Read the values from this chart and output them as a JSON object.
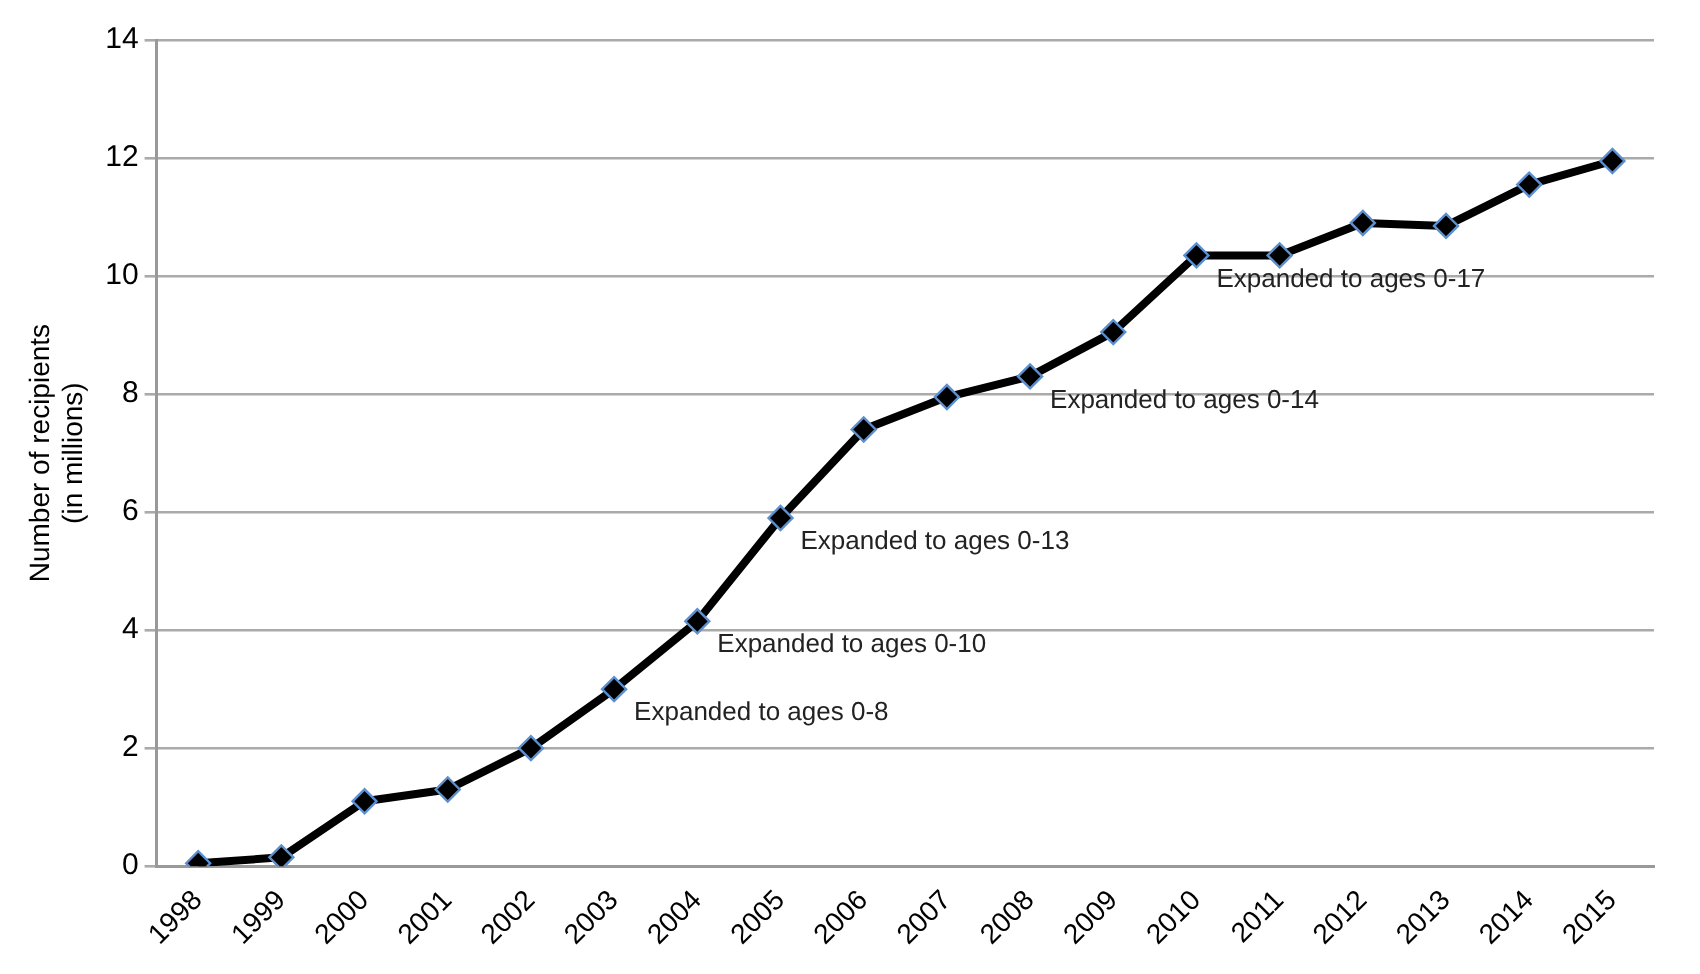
{
  "chart_data": {
    "type": "line",
    "ylabel": "Number of recipients\n(in millions)",
    "categories": [
      "1998",
      "1999",
      "2000",
      "2001",
      "2002",
      "2003",
      "2004",
      "2005",
      "2006",
      "2007",
      "2008",
      "2009",
      "2010",
      "2011",
      "2012",
      "2013",
      "2014",
      "2015"
    ],
    "series": [
      {
        "color": "#000000",
        "values": [
          0.05,
          0.15,
          1.1,
          1.3,
          2.0,
          3.0,
          4.15,
          5.9,
          7.4,
          7.95,
          8.3,
          9.05,
          10.35,
          10.35,
          10.9,
          10.85,
          11.55,
          11.95
        ]
      }
    ],
    "ylim": [
      0,
      14
    ],
    "yticks": [
      0,
      2,
      4,
      6,
      8,
      10,
      12,
      14
    ],
    "grid": "y",
    "legend": false,
    "marker": "diamond",
    "line_style": "solid",
    "annotations": [
      {
        "text": "Expanded to ages 0-8",
        "x": "2003",
        "y": 3.0
      },
      {
        "text": "Expanded to ages 0-10",
        "x": "2004",
        "y": 4.15
      },
      {
        "text": "Expanded to ages 0-13",
        "x": "2005",
        "y": 5.9
      },
      {
        "text": "Expanded to ages 0-14",
        "x": "2008",
        "y": 8.3
      },
      {
        "text": "Expanded to ages 0-17",
        "x": "2010",
        "y": 10.35
      }
    ]
  }
}
